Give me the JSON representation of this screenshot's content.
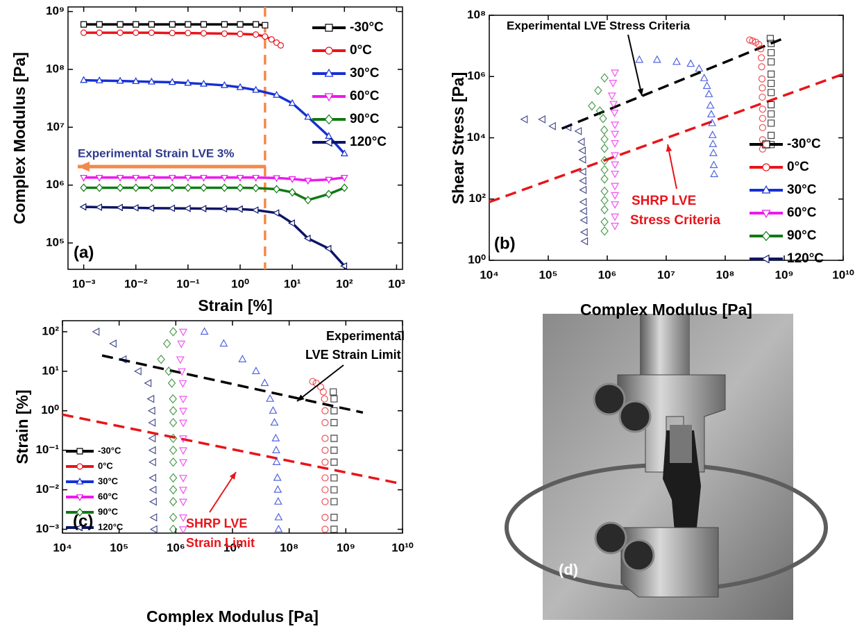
{
  "chart_data": [
    {
      "type": "line",
      "xlabel": "Strain [%]",
      "ylabel": "Complex Modulus [Pa]",
      "panel_label": "(a)",
      "log_x": true,
      "log_y": true,
      "lines": true,
      "legend": "top-right",
      "xlim": [
        0.0005,
        1300
      ],
      "ylim": [
        35000,
        1200000000
      ],
      "xticks": [
        {
          "value": 0.001,
          "label": "10⁻³"
        },
        {
          "value": 0.01,
          "label": "10⁻²"
        },
        {
          "value": 0.1,
          "label": "10⁻¹"
        },
        {
          "value": 1,
          "label": "10⁰"
        },
        {
          "value": 10,
          "label": "10¹"
        },
        {
          "value": 100,
          "label": "10²"
        },
        {
          "value": 1000,
          "label": "10³"
        }
      ],
      "yticks": [
        {
          "value": 100000,
          "label": "10⁵"
        },
        {
          "value": 1000000,
          "label": "10⁶"
        },
        {
          "value": 10000000,
          "label": "10⁷"
        },
        {
          "value": 100000000,
          "label": "10⁸"
        },
        {
          "value": 1000000000,
          "label": "10⁹"
        }
      ],
      "vline": {
        "x": 3,
        "color": "#f4894b"
      },
      "annotations": [
        {
          "text": "Experimental Strain LVE  3%",
          "color": "#2e3a8c"
        }
      ],
      "series": [
        {
          "name": "-30°C",
          "color": "#000000",
          "marker": "square",
          "x": [
            0.001,
            0.002,
            0.005,
            0.01,
            0.02,
            0.05,
            0.1,
            0.2,
            0.5,
            1,
            2,
            3
          ],
          "values": [
            600000000,
            600000000,
            600000000,
            600000000,
            600000000,
            600000000,
            600000000,
            600000000,
            600000000,
            600000000,
            600000000,
            580000000
          ]
        },
        {
          "name": "0°C",
          "color": "#e8141a",
          "marker": "circle",
          "x": [
            0.001,
            0.002,
            0.005,
            0.01,
            0.02,
            0.05,
            0.1,
            0.2,
            0.5,
            1,
            2,
            3,
            4,
            5,
            6
          ],
          "values": [
            430000000,
            430000000,
            430000000,
            430000000,
            430000000,
            425000000,
            425000000,
            420000000,
            415000000,
            410000000,
            400000000,
            370000000,
            330000000,
            290000000,
            260000000
          ]
        },
        {
          "name": "30°C",
          "color": "#1530d4",
          "marker": "up",
          "x": [
            0.001,
            0.002,
            0.005,
            0.01,
            0.02,
            0.05,
            0.1,
            0.2,
            0.5,
            1,
            2,
            5,
            10,
            20,
            50,
            100
          ],
          "values": [
            65000000,
            64000000,
            63000000,
            62000000,
            61000000,
            60000000,
            58000000,
            56000000,
            53000000,
            49000000,
            44000000,
            36000000,
            26000000,
            15000000,
            7000000,
            3500000
          ]
        },
        {
          "name": "60°C",
          "color": "#ee18ee",
          "marker": "down",
          "x": [
            0.001,
            0.002,
            0.005,
            0.01,
            0.02,
            0.05,
            0.1,
            0.2,
            0.5,
            1,
            2,
            5,
            10,
            20,
            50,
            100
          ],
          "values": [
            1350000,
            1350000,
            1350000,
            1350000,
            1350000,
            1350000,
            1350000,
            1350000,
            1350000,
            1350000,
            1350000,
            1330000,
            1280000,
            1200000,
            1250000,
            1350000
          ]
        },
        {
          "name": "90°C",
          "color": "#0f7a12",
          "marker": "diamond",
          "x": [
            0.001,
            0.002,
            0.005,
            0.01,
            0.02,
            0.05,
            0.1,
            0.2,
            0.5,
            1,
            2,
            5,
            10,
            20,
            50,
            100
          ],
          "values": [
            900000,
            900000,
            900000,
            900000,
            900000,
            900000,
            900000,
            900000,
            900000,
            900000,
            890000,
            850000,
            750000,
            550000,
            700000,
            900000
          ]
        },
        {
          "name": "120°C",
          "color": "#0c1566",
          "marker": "left",
          "x": [
            0.001,
            0.002,
            0.005,
            0.01,
            0.02,
            0.05,
            0.1,
            0.2,
            0.5,
            1,
            2,
            5,
            10,
            20,
            50,
            100
          ],
          "values": [
            420000,
            415000,
            410000,
            405000,
            400000,
            398000,
            395000,
            392000,
            390000,
            385000,
            370000,
            330000,
            220000,
            120000,
            80000,
            40000
          ]
        }
      ]
    },
    {
      "type": "scatter",
      "xlabel": "Complex Modulus [Pa]",
      "ylabel": "Shear Stress [Pa]",
      "panel_label": "(b)",
      "log_x": true,
      "log_y": true,
      "lines": false,
      "legend": "bottom-right",
      "xlim": [
        10000,
        10000000000
      ],
      "ylim": [
        1,
        100000000
      ],
      "xticks": [
        {
          "value": 10000,
          "label": "10⁴"
        },
        {
          "value": 100000,
          "label": "10⁵"
        },
        {
          "value": 1000000,
          "label": "10⁶"
        },
        {
          "value": 10000000,
          "label": "10⁷"
        },
        {
          "value": 100000000,
          "label": "10⁸"
        },
        {
          "value": 1000000000,
          "label": "10⁹"
        },
        {
          "value": 10000000000,
          "label": "10¹⁰"
        }
      ],
      "yticks": [
        {
          "value": 1,
          "label": "10⁰"
        },
        {
          "value": 100,
          "label": "10²"
        },
        {
          "value": 10000,
          "label": "10⁴"
        },
        {
          "value": 1000000,
          "label": "10⁶"
        },
        {
          "value": 100000000,
          "label": "10⁸"
        }
      ],
      "reference_lines": [
        {
          "color": "#000000",
          "x": [
            170000,
            1000000000
          ],
          "values": [
            20000,
            18000000
          ]
        },
        {
          "color": "#e8141a",
          "x": [
            10000,
            10000000000
          ],
          "values": [
            80,
            1200000
          ]
        }
      ],
      "annotations": [
        {
          "text": "Experimental LVE Stress Criteria",
          "color": "#000000"
        },
        {
          "text": "SHRP LVE",
          "color": "#e8141a"
        },
        {
          "text": "Stress Criteria",
          "color": "#e8141a"
        }
      ],
      "series": [
        {
          "name": "-30°C",
          "color": "#000000",
          "marker": "square",
          "x": [
            600000000,
            600000000,
            600000000,
            600000000,
            600000000,
            600000000,
            600000000,
            600000000,
            600000000,
            600000000,
            600000000,
            580000000
          ],
          "values": [
            6000,
            12000,
            30000,
            60000,
            120000,
            300000,
            600000,
            1200000,
            3000000,
            6000000,
            12000000,
            17400000
          ]
        },
        {
          "name": "0°C",
          "color": "#e8141a",
          "marker": "circle",
          "x": [
            430000000,
            430000000,
            430000000,
            430000000,
            430000000,
            425000000,
            425000000,
            420000000,
            415000000,
            410000000,
            400000000,
            370000000,
            330000000,
            290000000,
            260000000
          ],
          "values": [
            4300,
            8600,
            21500,
            43000,
            86000,
            212500,
            425000,
            840000,
            2075000,
            4100000,
            8000000,
            11100000,
            13200000,
            14500000,
            15600000
          ]
        },
        {
          "name": "30°C",
          "color": "#1530d4",
          "marker": "up",
          "x": [
            65000000,
            64000000,
            63000000,
            62000000,
            61000000,
            60000000,
            58000000,
            56000000,
            53000000,
            49000000,
            44000000,
            36000000,
            26000000,
            15000000,
            7000000,
            3500000
          ],
          "values": [
            650,
            1280,
            3150,
            6200,
            12200,
            30000,
            58000,
            112000,
            265000,
            490000,
            880000,
            1800000,
            2600000,
            3000000,
            3500000,
            3500000
          ]
        },
        {
          "name": "60°C",
          "color": "#ee18ee",
          "marker": "down",
          "x": [
            1350000,
            1350000,
            1350000,
            1350000,
            1350000,
            1350000,
            1350000,
            1350000,
            1350000,
            1350000,
            1350000,
            1330000,
            1280000,
            1200000,
            1250000,
            1350000
          ],
          "values": [
            13.5,
            27,
            67.5,
            135,
            270,
            675,
            1350,
            2700,
            6750,
            13500,
            27000,
            66500,
            128000,
            240000,
            625000,
            1350000
          ]
        },
        {
          "name": "90°C",
          "color": "#0f7a12",
          "marker": "diamond",
          "x": [
            900000,
            900000,
            900000,
            900000,
            900000,
            900000,
            900000,
            900000,
            900000,
            900000,
            890000,
            850000,
            750000,
            550000,
            700000,
            900000
          ],
          "values": [
            9,
            18,
            45,
            90,
            180,
            450,
            900,
            1800,
            4500,
            9000,
            17800,
            42500,
            75000,
            110000,
            350000,
            900000
          ]
        },
        {
          "name": "120°C",
          "color": "#0c1566",
          "marker": "left",
          "x": [
            420000,
            415000,
            410000,
            405000,
            400000,
            398000,
            395000,
            392000,
            390000,
            385000,
            370000,
            330000,
            220000,
            120000,
            80000,
            40000
          ],
          "values": [
            4.2,
            8.3,
            20.5,
            40.5,
            80,
            199,
            395,
            784,
            1950,
            3850,
            7400,
            16500,
            22000,
            24000,
            40000,
            40000
          ]
        }
      ]
    },
    {
      "type": "scatter",
      "xlabel": "Complex Modulus [Pa]",
      "ylabel": "Strain [%]",
      "panel_label": "(c)",
      "log_x": true,
      "log_y": true,
      "lines": false,
      "legend": "middle-left",
      "xlim": [
        10000,
        10000000000
      ],
      "ylim": [
        0.0008,
        190
      ],
      "xticks": [
        {
          "value": 10000,
          "label": "10⁴"
        },
        {
          "value": 100000,
          "label": "10⁵"
        },
        {
          "value": 1000000,
          "label": "10⁶"
        },
        {
          "value": 10000000,
          "label": "10⁷"
        },
        {
          "value": 100000000,
          "label": "10⁸"
        },
        {
          "value": 1000000000,
          "label": "10⁹"
        },
        {
          "value": 10000000000,
          "label": "10¹⁰"
        }
      ],
      "yticks": [
        {
          "value": 0.001,
          "label": "10⁻³"
        },
        {
          "value": 0.01,
          "label": "10⁻²"
        },
        {
          "value": 0.1,
          "label": "10⁻¹"
        },
        {
          "value": 1,
          "label": "10⁰"
        },
        {
          "value": 10,
          "label": "10¹"
        },
        {
          "value": 100,
          "label": "10²"
        }
      ],
      "reference_lines": [
        {
          "color": "#000000",
          "x": [
            50000,
            2000000000
          ],
          "values": [
            25,
            0.9
          ]
        },
        {
          "color": "#e8141a",
          "x": [
            10000,
            10000000000
          ],
          "values": [
            0.8,
            0.014
          ]
        }
      ],
      "annotations": [
        {
          "text": "Experimental",
          "color": "#000000"
        },
        {
          "text": "LVE Strain Limit",
          "color": "#000000"
        },
        {
          "text": "SHRP LVE",
          "color": "#e8141a"
        },
        {
          "text": "Strain Limit",
          "color": "#e8141a"
        }
      ],
      "series": [
        {
          "name": "-30°C",
          "color": "#000000",
          "marker": "square",
          "x": [
            620000000,
            620000000,
            620000000,
            620000000,
            620000000,
            620000000,
            620000000,
            620000000,
            620000000,
            620000000,
            620000000,
            600000000
          ],
          "values": [
            0.001,
            0.002,
            0.005,
            0.01,
            0.02,
            0.05,
            0.1,
            0.2,
            0.5,
            1,
            2,
            3
          ]
        },
        {
          "name": "0°C",
          "color": "#e8141a",
          "marker": "circle",
          "x": [
            430000000,
            430000000,
            430000000,
            430000000,
            430000000,
            430000000,
            430000000,
            430000000,
            430000000,
            430000000,
            420000000,
            400000000,
            360000000,
            300000000,
            260000000
          ],
          "values": [
            0.001,
            0.002,
            0.005,
            0.01,
            0.02,
            0.05,
            0.1,
            0.2,
            0.5,
            1,
            2,
            3,
            4,
            5,
            5.5
          ]
        },
        {
          "name": "30°C",
          "color": "#1530d4",
          "marker": "up",
          "x": [
            65000000,
            65000000,
            64000000,
            63000000,
            62000000,
            60000000,
            59000000,
            58000000,
            55000000,
            52000000,
            46000000,
            37000000,
            26000000,
            15000000,
            7000000,
            3200000
          ],
          "values": [
            0.001,
            0.002,
            0.005,
            0.01,
            0.02,
            0.05,
            0.1,
            0.2,
            0.5,
            1,
            2,
            5,
            10,
            20,
            50,
            100
          ]
        },
        {
          "name": "60°C",
          "color": "#ee18ee",
          "marker": "down",
          "x": [
            1350000,
            1350000,
            1350000,
            1350000,
            1350000,
            1350000,
            1350000,
            1350000,
            1350000,
            1350000,
            1350000,
            1330000,
            1280000,
            1200000,
            1250000,
            1350000
          ],
          "values": [
            0.001,
            0.002,
            0.005,
            0.01,
            0.02,
            0.05,
            0.1,
            0.2,
            0.5,
            1,
            2,
            5,
            10,
            20,
            50,
            100
          ]
        },
        {
          "name": "90°C",
          "color": "#0f7a12",
          "marker": "diamond",
          "x": [
            900000,
            900000,
            900000,
            900000,
            900000,
            900000,
            900000,
            900000,
            900000,
            900000,
            890000,
            850000,
            750000,
            550000,
            700000,
            900000
          ],
          "values": [
            0.001,
            0.002,
            0.005,
            0.01,
            0.02,
            0.05,
            0.1,
            0.2,
            0.5,
            1,
            2,
            5,
            10,
            20,
            50,
            100
          ]
        },
        {
          "name": "120°C",
          "color": "#0c1566",
          "marker": "left",
          "x": [
            420000,
            415000,
            410000,
            405000,
            400000,
            398000,
            395000,
            392000,
            390000,
            385000,
            370000,
            330000,
            220000,
            120000,
            80000,
            40000
          ],
          "values": [
            0.001,
            0.002,
            0.005,
            0.01,
            0.02,
            0.05,
            0.1,
            0.2,
            0.5,
            1,
            2,
            5,
            10,
            20,
            50,
            100
          ]
        }
      ]
    }
  ],
  "photo": {
    "label": "(d)"
  }
}
